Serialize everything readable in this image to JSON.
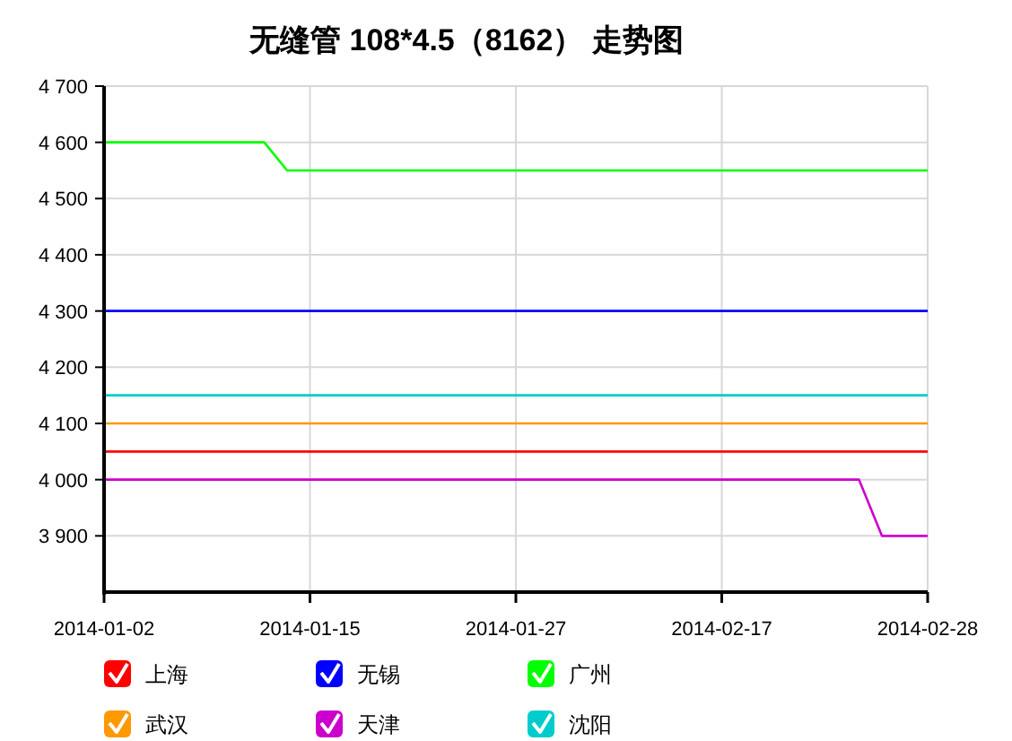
{
  "chart_data": {
    "type": "line",
    "title": "无缝管 108*4.5（8162） 走势图",
    "categories": [
      "2014-01-02",
      null,
      null,
      null,
      null,
      null,
      null,
      null,
      null,
      "2014-01-15",
      null,
      null,
      null,
      null,
      null,
      null,
      null,
      null,
      "2014-01-27",
      null,
      null,
      null,
      null,
      null,
      null,
      null,
      null,
      "2014-02-17",
      null,
      null,
      null,
      null,
      null,
      null,
      null,
      null,
      "2014-02-28"
    ],
    "series": [
      {
        "name": "上海",
        "color": "#ff0000",
        "values": [
          4050,
          4050,
          4050,
          4050,
          4050,
          4050,
          4050,
          4050,
          4050,
          4050,
          4050,
          4050,
          4050,
          4050,
          4050,
          4050,
          4050,
          4050,
          4050,
          4050,
          4050,
          4050,
          4050,
          4050,
          4050,
          4050,
          4050,
          4050,
          4050,
          4050,
          4050,
          4050,
          4050,
          4050,
          4050,
          4050,
          4050
        ]
      },
      {
        "name": "无锡",
        "color": "#0000ff",
        "values": [
          4300,
          4300,
          4300,
          4300,
          4300,
          4300,
          4300,
          4300,
          4300,
          4300,
          4300,
          4300,
          4300,
          4300,
          4300,
          4300,
          4300,
          4300,
          4300,
          4300,
          4300,
          4300,
          4300,
          4300,
          4300,
          4300,
          4300,
          4300,
          4300,
          4300,
          4300,
          4300,
          4300,
          4300,
          4300,
          4300,
          4300
        ]
      },
      {
        "name": "广州",
        "color": "#00ff00",
        "values": [
          4600,
          4600,
          4600,
          4600,
          4600,
          4600,
          4600,
          4600,
          4550,
          4550,
          4550,
          4550,
          4550,
          4550,
          4550,
          4550,
          4550,
          4550,
          4550,
          4550,
          4550,
          4550,
          4550,
          4550,
          4550,
          4550,
          4550,
          4550,
          4550,
          4550,
          4550,
          4550,
          4550,
          4550,
          4550,
          4550,
          4550
        ]
      },
      {
        "name": "武汉",
        "color": "#ff9900",
        "values": [
          4100,
          4100,
          4100,
          4100,
          4100,
          4100,
          4100,
          4100,
          4100,
          4100,
          4100,
          4100,
          4100,
          4100,
          4100,
          4100,
          4100,
          4100,
          4100,
          4100,
          4100,
          4100,
          4100,
          4100,
          4100,
          4100,
          4100,
          4100,
          4100,
          4100,
          4100,
          4100,
          4100,
          4100,
          4100,
          4100,
          4100
        ]
      },
      {
        "name": "天津",
        "color": "#cc00cc",
        "values": [
          4000,
          4000,
          4000,
          4000,
          4000,
          4000,
          4000,
          4000,
          4000,
          4000,
          4000,
          4000,
          4000,
          4000,
          4000,
          4000,
          4000,
          4000,
          4000,
          4000,
          4000,
          4000,
          4000,
          4000,
          4000,
          4000,
          4000,
          4000,
          4000,
          4000,
          4000,
          4000,
          4000,
          4000,
          3900,
          3900,
          3900
        ]
      },
      {
        "name": "沈阳",
        "color": "#00cccc",
        "values": [
          4150,
          4150,
          4150,
          4150,
          4150,
          4150,
          4150,
          4150,
          4150,
          4150,
          4150,
          4150,
          4150,
          4150,
          4150,
          4150,
          4150,
          4150,
          4150,
          4150,
          4150,
          4150,
          4150,
          4150,
          4150,
          4150,
          4150,
          4150,
          4150,
          4150,
          4150,
          4150,
          4150,
          4150,
          4150,
          4150,
          4150
        ]
      }
    ],
    "ylim": [
      3800,
      4700
    ],
    "yticks": [
      {
        "value": 3900,
        "label": "3 900"
      },
      {
        "value": 4000,
        "label": "4 000"
      },
      {
        "value": 4100,
        "label": "4 100"
      },
      {
        "value": 4200,
        "label": "4 200"
      },
      {
        "value": 4300,
        "label": "4 300"
      },
      {
        "value": 4400,
        "label": "4 400"
      },
      {
        "value": 4500,
        "label": "4 500"
      },
      {
        "value": 4600,
        "label": "4 600"
      },
      {
        "value": 4700,
        "label": "4 700"
      }
    ],
    "grid": true,
    "legend": "bottom left",
    "marker": "none"
  }
}
